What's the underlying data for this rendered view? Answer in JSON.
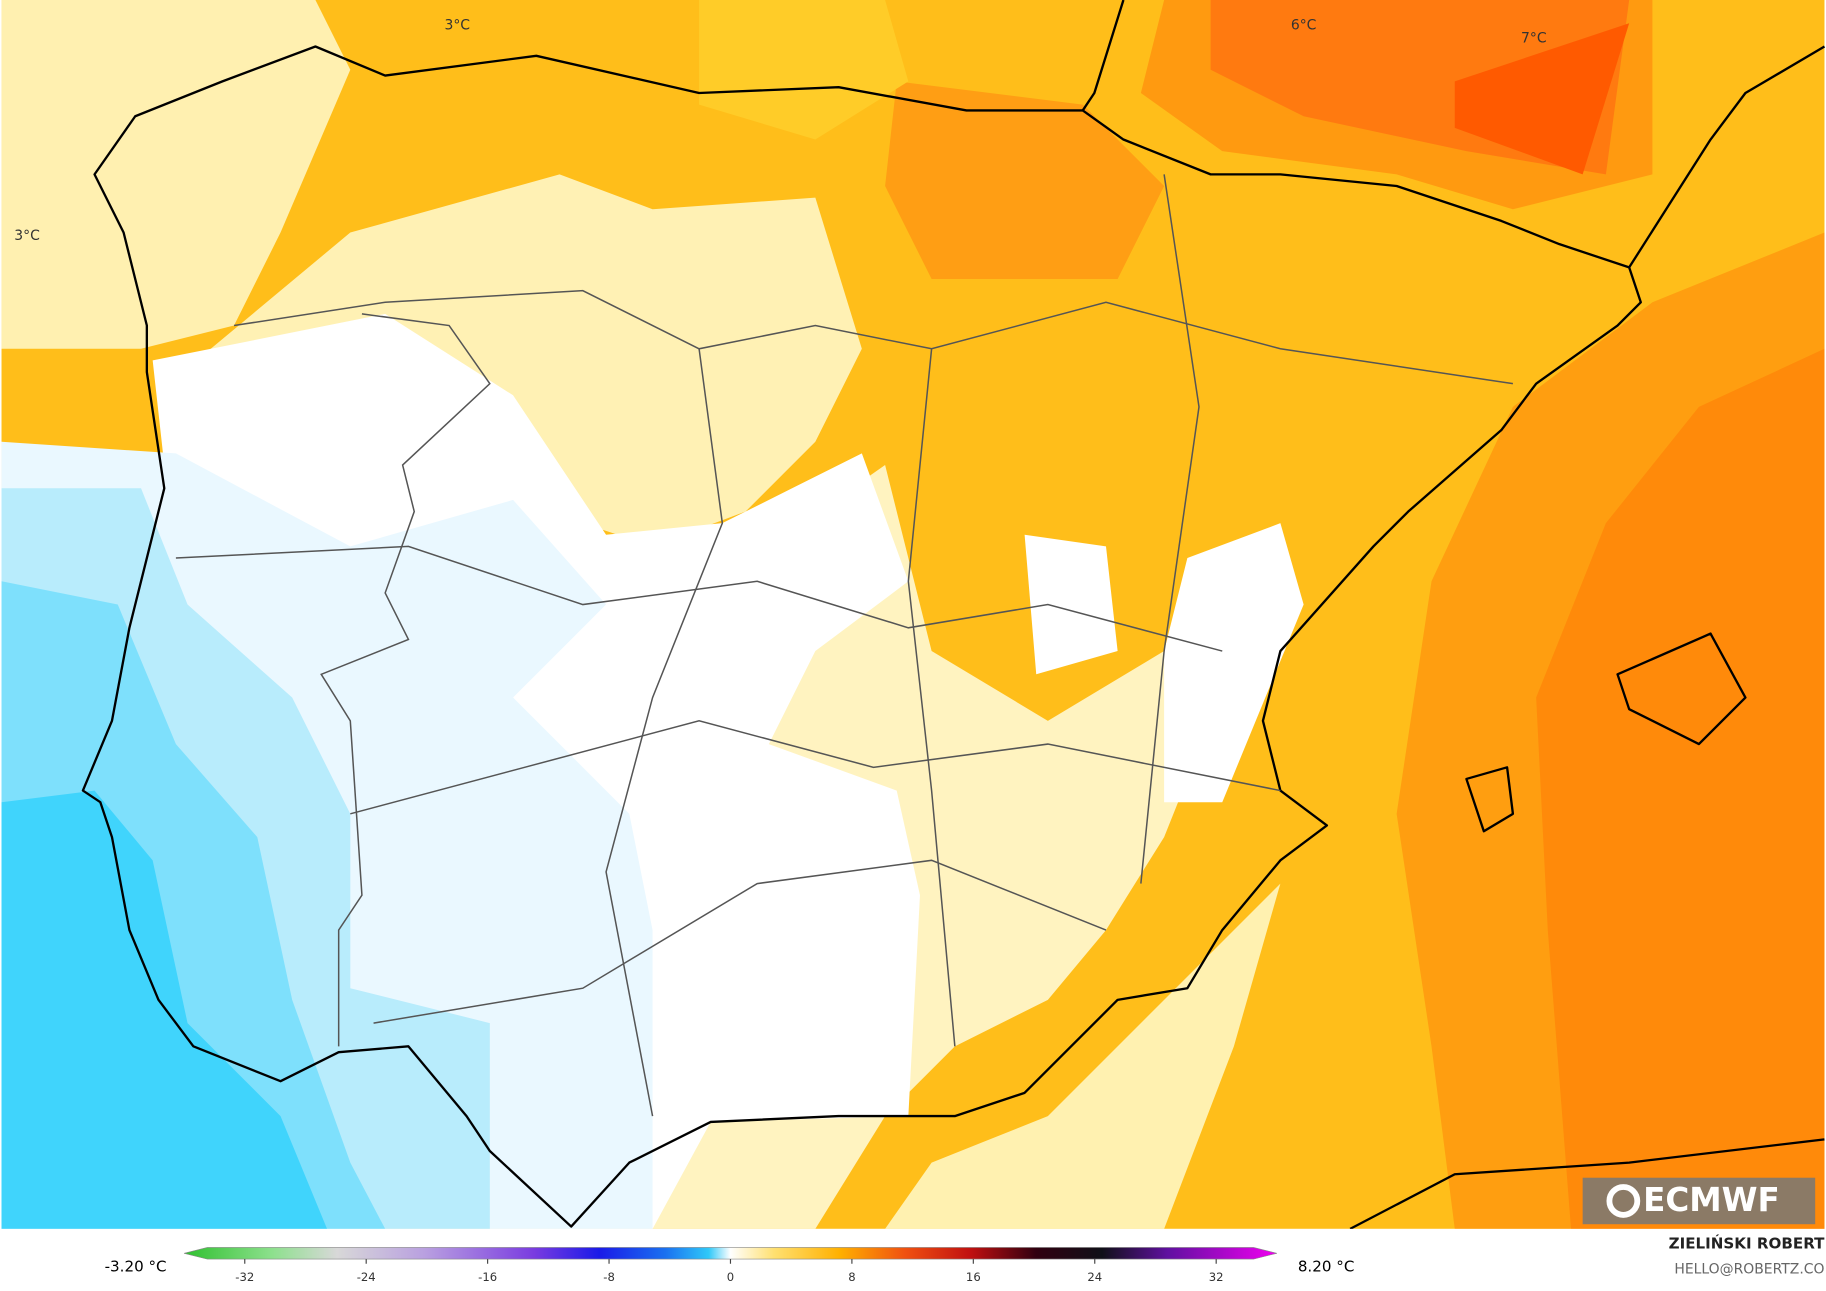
{
  "map": {
    "contour_labels": [
      "3°C",
      "6°C",
      "7°C",
      "3°C"
    ],
    "colorbar": {
      "min_label": "-3.20 °C",
      "max_label": "8.20 °C",
      "lim": [
        -36,
        36
      ],
      "ticks": [
        -32,
        -24,
        -16,
        -8,
        0,
        8,
        16,
        24,
        32
      ]
    },
    "credit": {
      "author": "ZIELIŃSKI ROBERT",
      "contact": "HELLO@ROBERTZ.CO"
    },
    "logo": "ECMWF"
  }
}
